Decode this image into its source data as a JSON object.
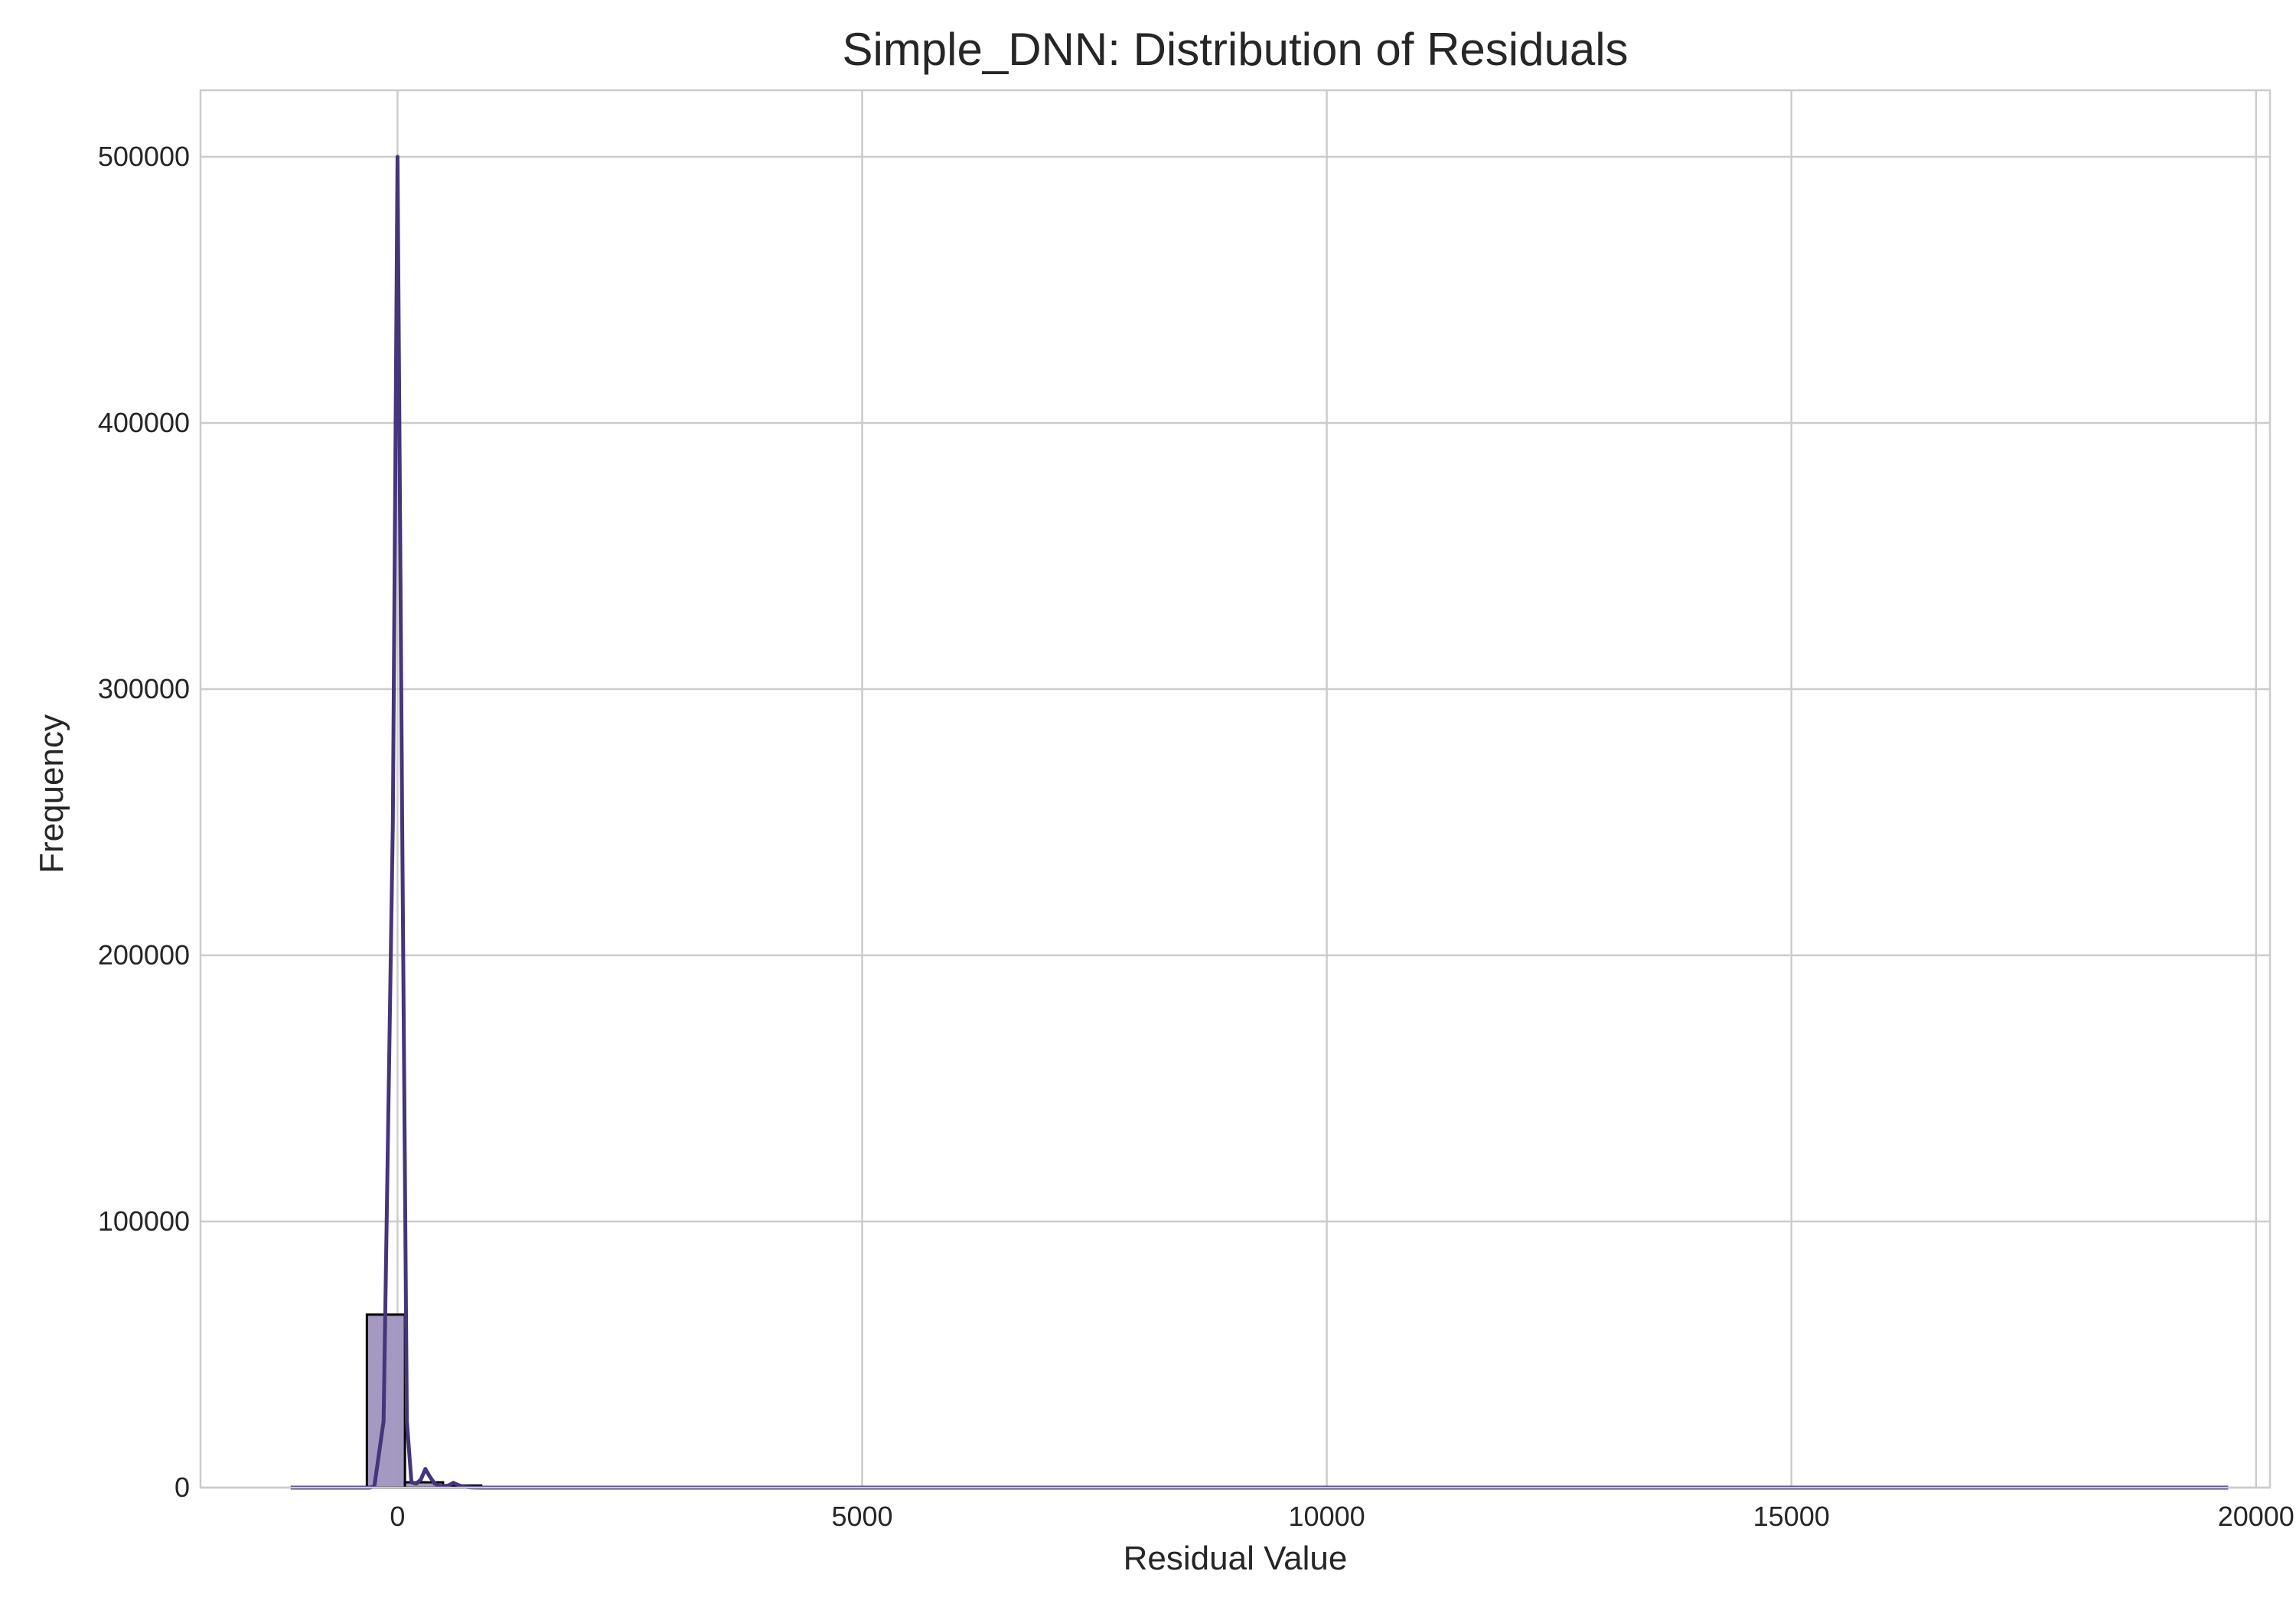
{
  "chart_data": {
    "type": "bar",
    "title": "Simple_DNN: Distribution of Residuals",
    "xlabel": "Residual Value",
    "ylabel": "Frequency",
    "xlim": [
      -2120,
      20150
    ],
    "ylim": [
      0,
      525000
    ],
    "xticks": [
      0,
      5000,
      10000,
      15000,
      20000
    ],
    "xtick_labels": [
      "0",
      "5000",
      "10000",
      "15000",
      "20000"
    ],
    "yticks": [
      0,
      100000,
      200000,
      300000,
      400000,
      500000
    ],
    "ytick_labels": [
      "0",
      "100000",
      "200000",
      "300000",
      "400000",
      "500000"
    ],
    "grid": true,
    "bar_color": "#9f93bd",
    "bar_edge_color": "#000000",
    "kde_color": "#46357a",
    "histogram": {
      "bin_edges": [
        -330,
        80,
        490,
        900
      ],
      "counts": [
        65000,
        2000,
        800
      ]
    },
    "kde": {
      "x": [
        -1150,
        -300,
        -250,
        -150,
        -50,
        0,
        50,
        100,
        150,
        200,
        250,
        300,
        350,
        400,
        450,
        500,
        550,
        600,
        650,
        700,
        750,
        800,
        900,
        1100,
        2000,
        5000,
        10000,
        15000,
        19700
      ],
      "y": [
        0,
        0,
        400,
        25000,
        250000,
        500000,
        250000,
        25000,
        2000,
        1500,
        3000,
        7000,
        4000,
        1500,
        600,
        600,
        800,
        1800,
        1000,
        400,
        200,
        100,
        0,
        0,
        0,
        0,
        0,
        0,
        0
      ]
    }
  }
}
